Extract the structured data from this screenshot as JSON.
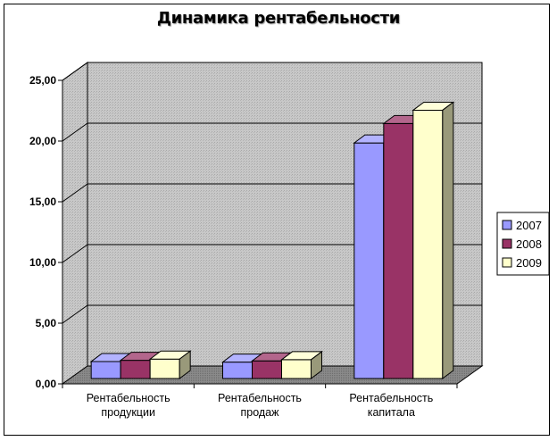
{
  "chart_data": {
    "type": "bar",
    "title": "Динамика рентабельности",
    "categories": [
      [
        "Рентабельность",
        "продукции"
      ],
      [
        "Рентабельность",
        "продаж"
      ],
      [
        "Рентабельность",
        "капитала"
      ]
    ],
    "series": [
      {
        "name": "2007",
        "values": [
          1.4,
          1.35,
          19.4
        ],
        "color": "#9999ff"
      },
      {
        "name": "2008",
        "values": [
          1.5,
          1.45,
          21.0
        ],
        "color": "#993366"
      },
      {
        "name": "2009",
        "values": [
          1.6,
          1.55,
          22.1
        ],
        "color": "#ffffcc"
      }
    ],
    "ylim": [
      0,
      25
    ],
    "y_ticks": [
      "0,00",
      "5,00",
      "10,00",
      "15,00",
      "20,00",
      "25,00"
    ],
    "grid": true,
    "legend_position": "right",
    "wall_color": "#c0c0c0"
  }
}
